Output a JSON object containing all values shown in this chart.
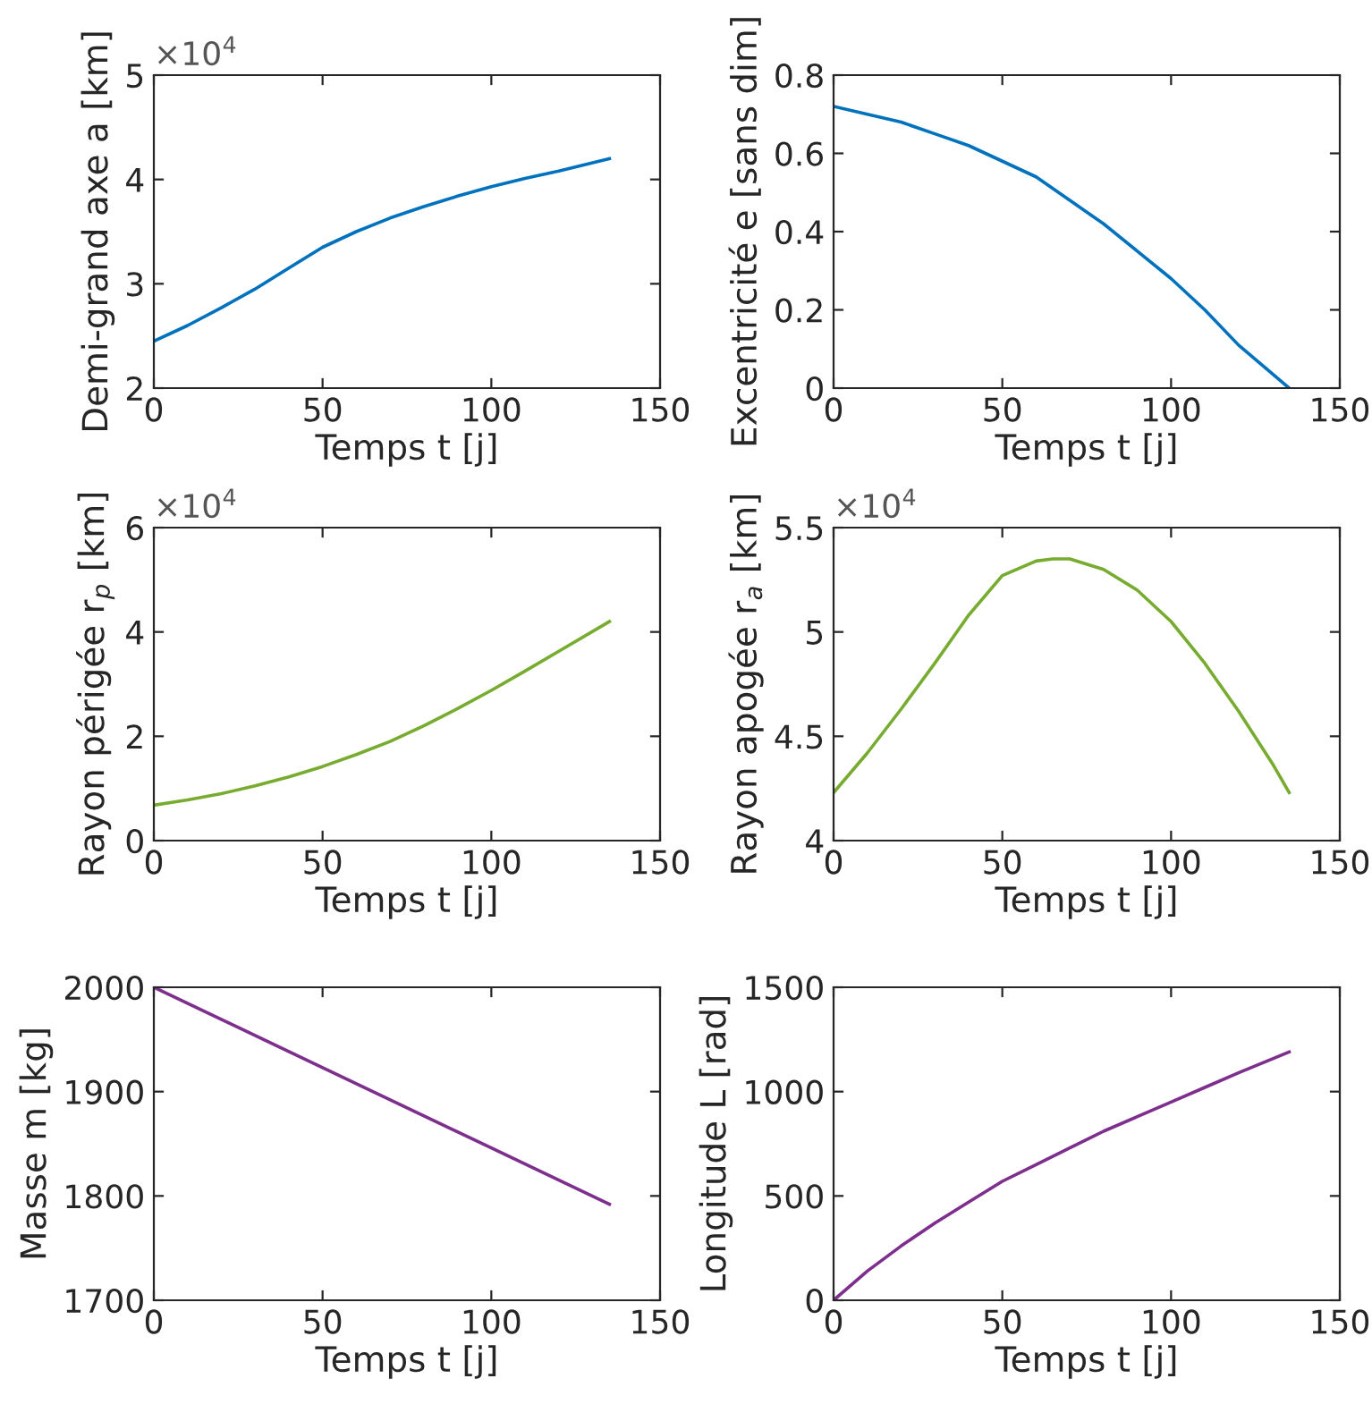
{
  "chart_data": [
    {
      "type": "line",
      "xlabel": "Temps t [j]",
      "ylabel": "Demi-grand axe a [km]",
      "annotations": [
        "×10$^{4}$"
      ],
      "xlim": [
        0,
        150
      ],
      "xticks": [
        0,
        50,
        100,
        150
      ],
      "ylim": [
        2,
        5
      ],
      "yticks": [
        2,
        3,
        4,
        5
      ],
      "grid": false,
      "legend": false,
      "series": [
        {
          "color": "#0072bd",
          "x": [
            0,
            10,
            20,
            30,
            40,
            50,
            60,
            70,
            80,
            90,
            100,
            110,
            120,
            135
          ],
          "values": [
            2.45,
            2.6,
            2.77,
            2.95,
            3.15,
            3.35,
            3.5,
            3.63,
            3.74,
            3.84,
            3.93,
            4.01,
            4.08,
            4.2
          ]
        }
      ]
    },
    {
      "type": "line",
      "xlabel": "Temps t [j]",
      "ylabel": "Excentricité e [sans dim]",
      "xlim": [
        0,
        150
      ],
      "xticks": [
        0,
        50,
        100,
        150
      ],
      "ylim": [
        0,
        0.8
      ],
      "yticks": [
        0,
        0.2,
        0.4,
        0.6,
        0.8
      ],
      "grid": false,
      "legend": false,
      "series": [
        {
          "color": "#0072bd",
          "x": [
            0,
            10,
            20,
            30,
            40,
            50,
            60,
            70,
            80,
            90,
            100,
            110,
            120,
            135
          ],
          "values": [
            0.72,
            0.7,
            0.68,
            0.65,
            0.62,
            0.58,
            0.54,
            0.48,
            0.42,
            0.35,
            0.28,
            0.2,
            0.11,
            0.0
          ]
        }
      ]
    },
    {
      "type": "line",
      "xlabel": "Temps t [j]",
      "ylabel": "Rayon périgée r$_{p}$ [km]",
      "annotations": [
        "×10$^{4}$"
      ],
      "xlim": [
        0,
        150
      ],
      "xticks": [
        0,
        50,
        100,
        150
      ],
      "ylim": [
        0,
        6
      ],
      "yticks": [
        0,
        2,
        4,
        6
      ],
      "grid": false,
      "legend": false,
      "series": [
        {
          "color": "#77ac30",
          "x": [
            0,
            10,
            20,
            30,
            40,
            50,
            60,
            70,
            80,
            90,
            100,
            110,
            120,
            135
          ],
          "values": [
            0.68,
            0.78,
            0.9,
            1.05,
            1.22,
            1.42,
            1.65,
            1.9,
            2.2,
            2.53,
            2.88,
            3.25,
            3.63,
            4.2
          ]
        }
      ]
    },
    {
      "type": "line",
      "xlabel": "Temps t [j]",
      "ylabel": "Rayon apogée r$_{a}$ [km]",
      "annotations": [
        "×10$^{4}$"
      ],
      "xlim": [
        0,
        150
      ],
      "xticks": [
        0,
        50,
        100,
        150
      ],
      "ylim": [
        4,
        5.5
      ],
      "yticks": [
        4,
        4.5,
        5,
        5.5
      ],
      "grid": false,
      "legend": false,
      "series": [
        {
          "color": "#77ac30",
          "x": [
            0,
            10,
            20,
            30,
            40,
            50,
            60,
            65,
            70,
            80,
            90,
            100,
            110,
            120,
            130,
            135
          ],
          "values": [
            4.23,
            4.42,
            4.63,
            4.85,
            5.08,
            5.27,
            5.34,
            5.35,
            5.35,
            5.3,
            5.2,
            5.05,
            4.85,
            4.62,
            4.37,
            4.23
          ]
        }
      ]
    },
    {
      "type": "line",
      "xlabel": "Temps t [j]",
      "ylabel": "Masse m [kg]",
      "xlim": [
        0,
        150
      ],
      "xticks": [
        0,
        50,
        100,
        150
      ],
      "ylim": [
        1700,
        2000
      ],
      "yticks": [
        1700,
        1800,
        1900,
        2000
      ],
      "grid": false,
      "legend": false,
      "series": [
        {
          "color": "#7e2f8e",
          "x": [
            0,
            50,
            100,
            135
          ],
          "values": [
            2000,
            1923,
            1846,
            1792
          ]
        }
      ]
    },
    {
      "type": "line",
      "xlabel": "Temps t [j]",
      "ylabel": "Longitude L [rad]",
      "xlim": [
        0,
        150
      ],
      "xticks": [
        0,
        50,
        100,
        150
      ],
      "ylim": [
        0,
        1500
      ],
      "yticks": [
        0,
        500,
        1000,
        1500
      ],
      "grid": false,
      "legend": false,
      "series": [
        {
          "color": "#7e2f8e",
          "x": [
            0,
            10,
            20,
            30,
            40,
            50,
            60,
            70,
            80,
            90,
            100,
            110,
            120,
            135
          ],
          "values": [
            0,
            140,
            260,
            370,
            470,
            570,
            650,
            730,
            810,
            880,
            950,
            1020,
            1090,
            1190
          ]
        }
      ]
    }
  ]
}
